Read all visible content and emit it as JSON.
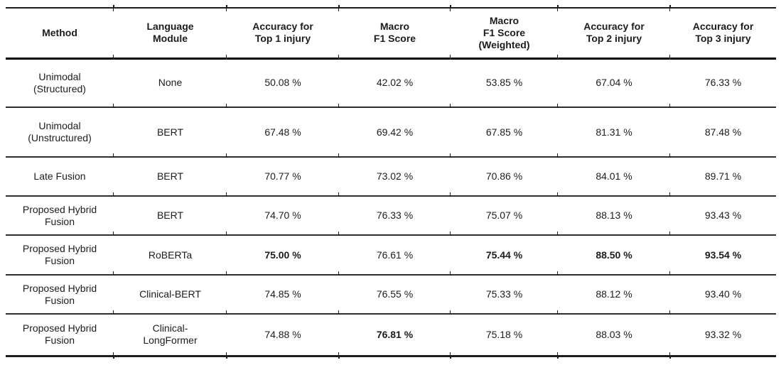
{
  "page": {
    "background": "#ffffff",
    "text_color": "#1c1c1c",
    "border_color": "#1b1b1b"
  },
  "table": {
    "columns": [
      {
        "id": "method",
        "lines": [
          "Method"
        ]
      },
      {
        "id": "language-module",
        "lines": [
          "Language",
          "Module"
        ]
      },
      {
        "id": "accuracy-top1",
        "lines": [
          "Accuracy for",
          "Top 1 injury"
        ]
      },
      {
        "id": "macro-f1",
        "lines": [
          "Macro",
          "F1 Score"
        ]
      },
      {
        "id": "macro-f1-weighted",
        "lines": [
          "Macro",
          "F1 Score",
          "(Weighted)"
        ]
      },
      {
        "id": "accuracy-top2",
        "lines": [
          "Accuracy for",
          "Top 2 injury"
        ]
      },
      {
        "id": "accuracy-top3",
        "lines": [
          "Accuracy for",
          "Top 3 injury"
        ]
      }
    ],
    "rows": [
      {
        "method_lines": [
          "Unimodal",
          "(Structured)"
        ],
        "module_lines": [
          "None"
        ],
        "values": [
          {
            "text": "50.08 %",
            "bold": false
          },
          {
            "text": "42.02 %",
            "bold": false
          },
          {
            "text": "53.85 %",
            "bold": false
          },
          {
            "text": "67.04 %",
            "bold": false
          },
          {
            "text": "76.33 %",
            "bold": false
          }
        ]
      },
      {
        "method_lines": [
          "Unimodal",
          "(Unstructured)"
        ],
        "module_lines": [
          "BERT"
        ],
        "values": [
          {
            "text": "67.48 %",
            "bold": false
          },
          {
            "text": "69.42 %",
            "bold": false
          },
          {
            "text": "67.85 %",
            "bold": false
          },
          {
            "text": "81.31 %",
            "bold": false
          },
          {
            "text": "87.48 %",
            "bold": false
          }
        ]
      },
      {
        "method_lines": [
          "Late Fusion"
        ],
        "module_lines": [
          "BERT"
        ],
        "values": [
          {
            "text": "70.77 %",
            "bold": false
          },
          {
            "text": "73.02 %",
            "bold": false
          },
          {
            "text": "70.86 %",
            "bold": false
          },
          {
            "text": "84.01 %",
            "bold": false
          },
          {
            "text": "89.71 %",
            "bold": false
          }
        ]
      },
      {
        "method_lines": [
          "Proposed Hybrid",
          "Fusion"
        ],
        "module_lines": [
          "BERT"
        ],
        "values": [
          {
            "text": "74.70 %",
            "bold": false
          },
          {
            "text": "76.33 %",
            "bold": false
          },
          {
            "text": "75.07 %",
            "bold": false
          },
          {
            "text": "88.13 %",
            "bold": false
          },
          {
            "text": "93.43 %",
            "bold": false
          }
        ]
      },
      {
        "method_lines": [
          "Proposed Hybrid",
          "Fusion"
        ],
        "module_lines": [
          "RoBERTa"
        ],
        "values": [
          {
            "text": "75.00 %",
            "bold": true
          },
          {
            "text": "76.61 %",
            "bold": false
          },
          {
            "text": "75.44 %",
            "bold": true
          },
          {
            "text": "88.50 %",
            "bold": true
          },
          {
            "text": "93.54 %",
            "bold": true
          }
        ]
      },
      {
        "method_lines": [
          "Proposed Hybrid",
          "Fusion"
        ],
        "module_lines": [
          "Clinical-BERT"
        ],
        "values": [
          {
            "text": "74.85 %",
            "bold": false
          },
          {
            "text": "76.55 %",
            "bold": false
          },
          {
            "text": "75.33 %",
            "bold": false
          },
          {
            "text": "88.12 %",
            "bold": false
          },
          {
            "text": "93.40 %",
            "bold": false
          }
        ]
      },
      {
        "method_lines": [
          "Proposed Hybrid",
          "Fusion"
        ],
        "module_lines": [
          "Clinical-",
          "LongFormer"
        ],
        "values": [
          {
            "text": "74.88 %",
            "bold": false
          },
          {
            "text": "76.81 %",
            "bold": true
          },
          {
            "text": "75.18 %",
            "bold": false
          },
          {
            "text": "88.03 %",
            "bold": false
          },
          {
            "text": "93.32 %",
            "bold": false
          }
        ]
      }
    ]
  }
}
